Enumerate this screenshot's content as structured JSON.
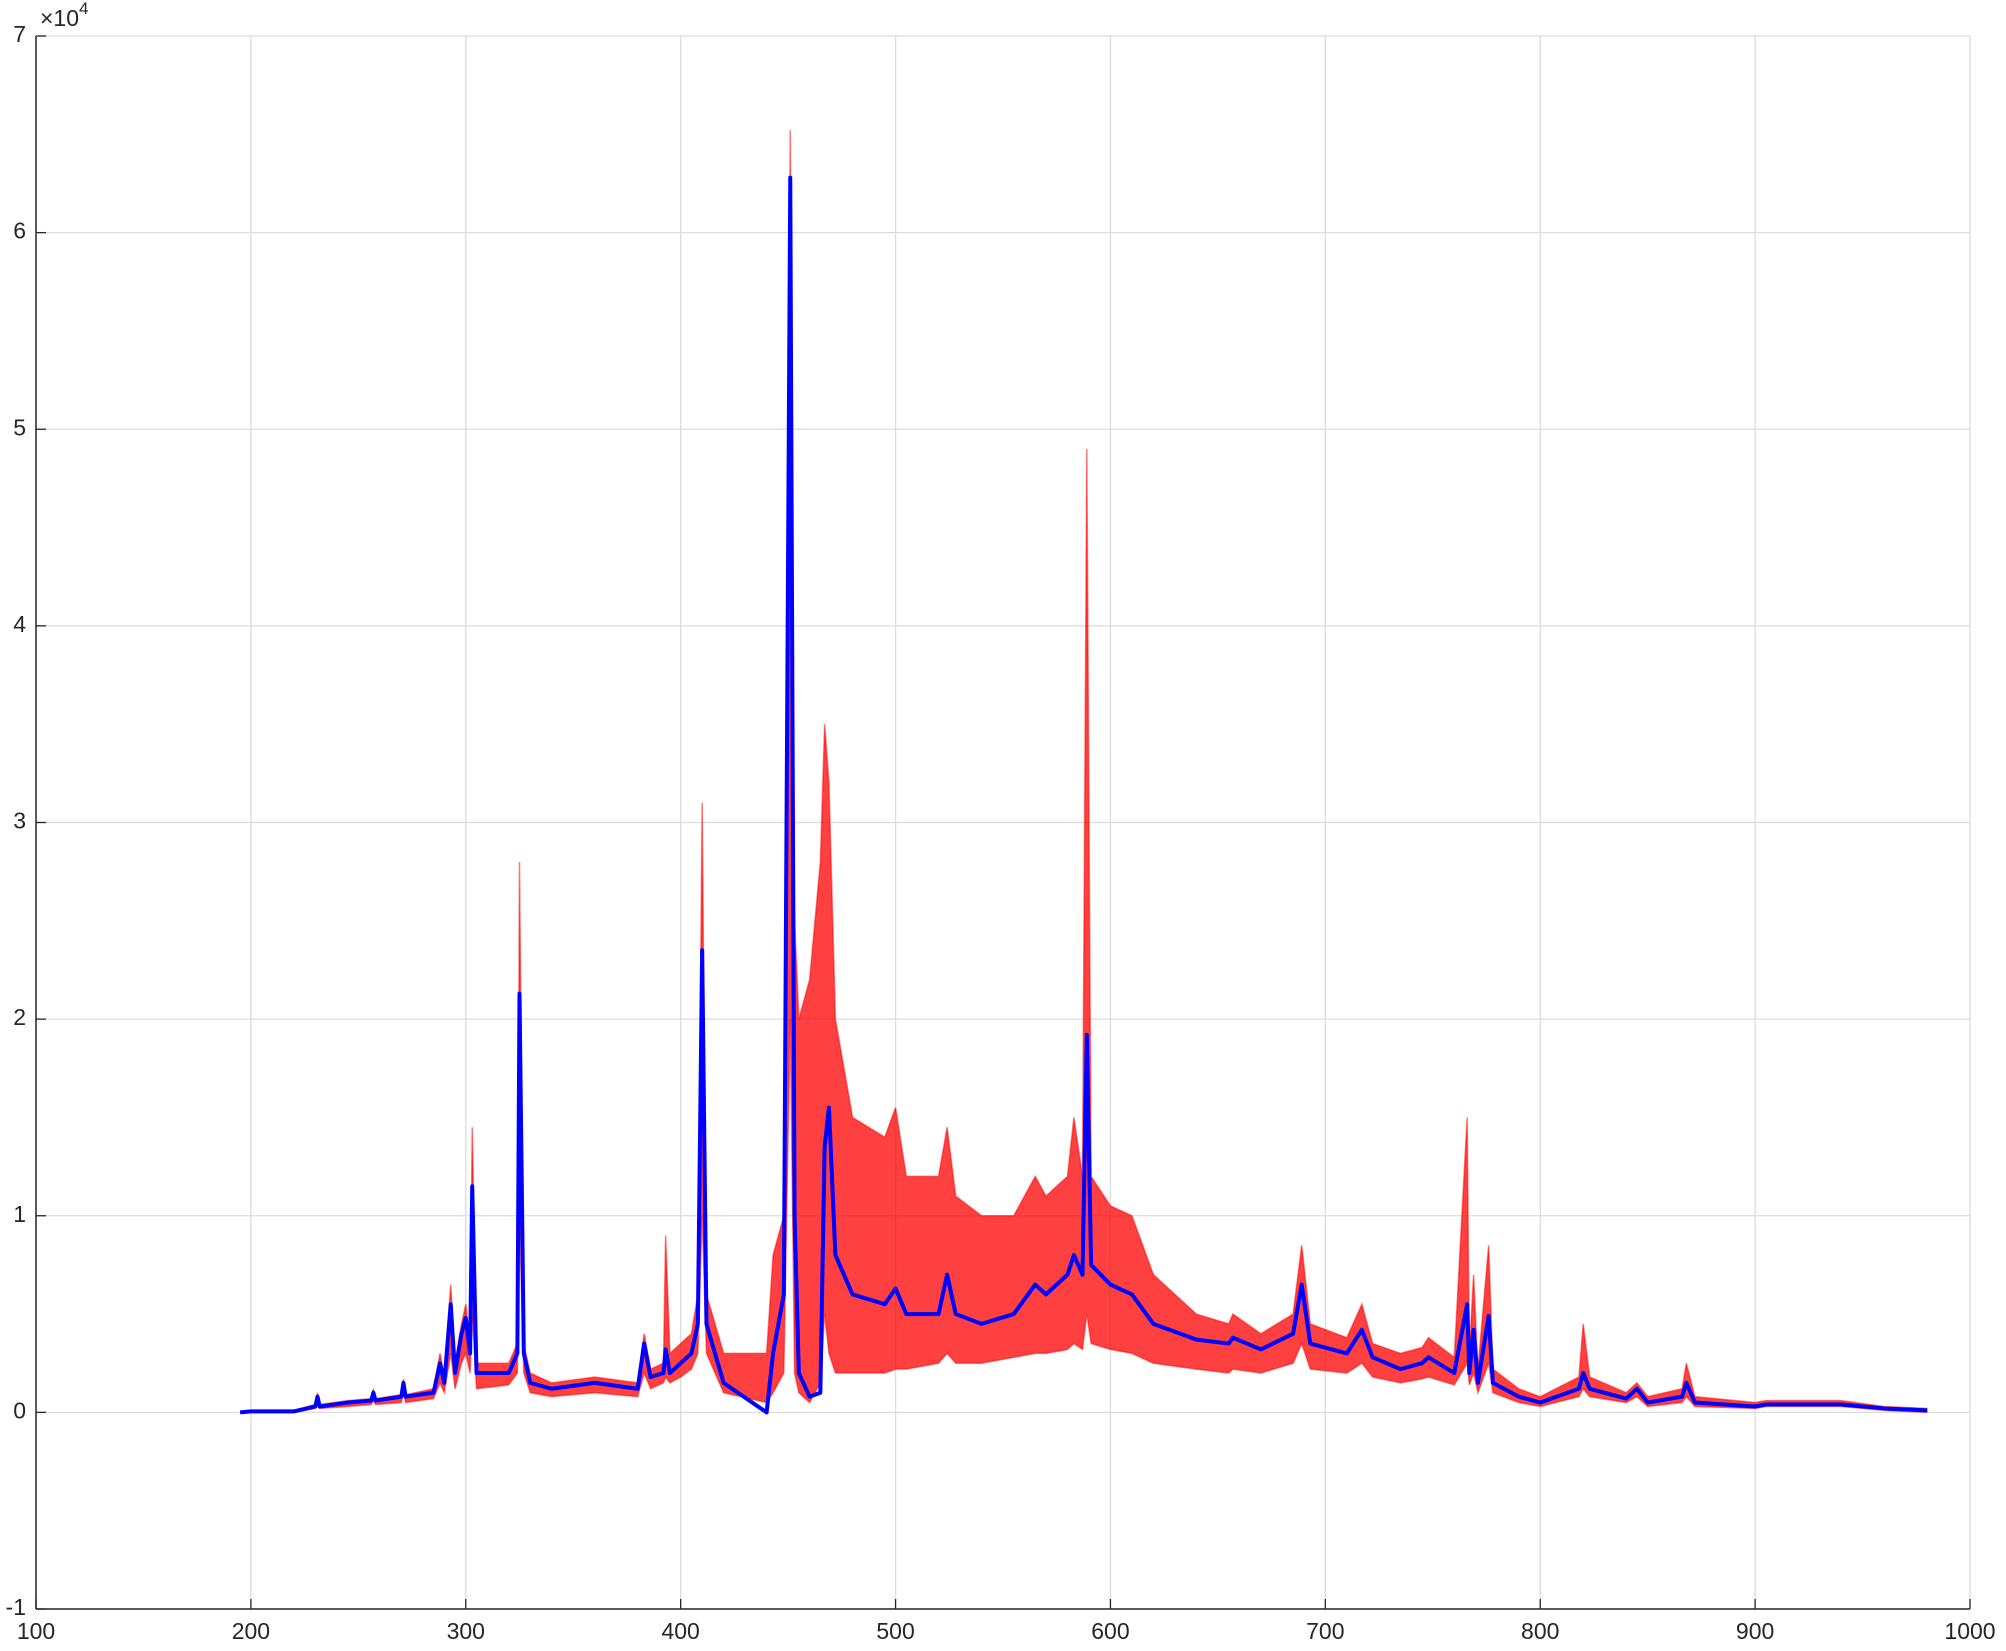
{
  "chart_data": {
    "type": "line",
    "y_multiplier": {
      "base": "×10",
      "exponent": "4"
    },
    "x": [
      195,
      200,
      220,
      230,
      231,
      232,
      245,
      256,
      257,
      258,
      270,
      271,
      272,
      285,
      288,
      290,
      293,
      295,
      298,
      300,
      302,
      303,
      305,
      320,
      324,
      325,
      327,
      330,
      340,
      360,
      380,
      383,
      386,
      392,
      393,
      395,
      400,
      405,
      408,
      410,
      412,
      420,
      440,
      443,
      448,
      451,
      453,
      455,
      460,
      465,
      467,
      469,
      472,
      480,
      495,
      500,
      505,
      520,
      524,
      528,
      540,
      555,
      565,
      570,
      580,
      583,
      587,
      589,
      591,
      600,
      610,
      620,
      640,
      655,
      657,
      670,
      685,
      689,
      693,
      710,
      717,
      722,
      735,
      745,
      748,
      760,
      766,
      767,
      769,
      771,
      776,
      778,
      790,
      800,
      818,
      820,
      823,
      840,
      845,
      850,
      866,
      868,
      872,
      900,
      905,
      940,
      960,
      980
    ],
    "series": [
      {
        "type": "band",
        "color": "#ff0000",
        "values": [
          0,
          0.01,
          0.01,
          0.04,
          0.1,
          0.04,
          0.06,
          0.07,
          0.12,
          0.07,
          0.09,
          0.17,
          0.09,
          0.12,
          0.3,
          0.18,
          0.65,
          0.25,
          0.45,
          0.55,
          0.35,
          1.45,
          0.25,
          0.25,
          0.35,
          2.8,
          0.35,
          0.2,
          0.15,
          0.18,
          0.15,
          0.4,
          0.22,
          0.25,
          0.9,
          0.3,
          0.35,
          0.4,
          0.6,
          3.1,
          0.6,
          0.3,
          0.3,
          0.8,
          1.0,
          6.52,
          2.5,
          2.0,
          2.2,
          2.8,
          3.5,
          3.2,
          2.0,
          1.5,
          1.4,
          1.55,
          1.2,
          1.2,
          1.45,
          1.1,
          1.0,
          1.0,
          1.2,
          1.1,
          1.2,
          1.5,
          1.2,
          4.9,
          1.2,
          1.05,
          1.0,
          0.7,
          0.5,
          0.45,
          0.5,
          0.4,
          0.5,
          0.85,
          0.45,
          0.38,
          0.55,
          0.35,
          0.3,
          0.33,
          0.38,
          0.28,
          1.5,
          0.3,
          0.7,
          0.22,
          0.85,
          0.22,
          0.12,
          0.08,
          0.18,
          0.45,
          0.18,
          0.1,
          0.15,
          0.08,
          0.12,
          0.25,
          0.08,
          0.05,
          0.06,
          0.06,
          0.03,
          0.02
        ],
        "lower_values": [
          0,
          0,
          0,
          0.02,
          0.05,
          0.02,
          0.03,
          0.04,
          0.06,
          0.04,
          0.05,
          0.1,
          0.05,
          0.07,
          0.15,
          0.1,
          0.3,
          0.12,
          0.25,
          0.3,
          0.2,
          0.5,
          0.12,
          0.14,
          0.2,
          1.0,
          0.2,
          0.1,
          0.08,
          0.1,
          0.08,
          0.2,
          0.12,
          0.15,
          0.18,
          0.15,
          0.18,
          0.22,
          0.3,
          1.0,
          0.3,
          0.1,
          0.05,
          0.1,
          0.2,
          2.0,
          0.2,
          0.1,
          0.05,
          0.15,
          0.5,
          0.3,
          0.2,
          0.2,
          0.2,
          0.22,
          0.22,
          0.25,
          0.3,
          0.25,
          0.25,
          0.28,
          0.3,
          0.3,
          0.32,
          0.35,
          0.32,
          0.5,
          0.35,
          0.32,
          0.3,
          0.25,
          0.22,
          0.2,
          0.22,
          0.2,
          0.25,
          0.35,
          0.22,
          0.2,
          0.25,
          0.18,
          0.15,
          0.17,
          0.18,
          0.14,
          0.25,
          0.14,
          0.2,
          0.1,
          0.25,
          0.1,
          0.05,
          0.03,
          0.08,
          0.12,
          0.08,
          0.05,
          0.08,
          0.03,
          0.05,
          0.08,
          0.03,
          0.02,
          0.03,
          0.03,
          0.01,
          0
        ]
      },
      {
        "type": "line",
        "color": "#0000ff",
        "values": [
          0,
          0.005,
          0.005,
          0.03,
          0.08,
          0.03,
          0.05,
          0.06,
          0.1,
          0.06,
          0.08,
          0.15,
          0.08,
          0.1,
          0.25,
          0.15,
          0.55,
          0.2,
          0.4,
          0.48,
          0.3,
          1.15,
          0.2,
          0.2,
          0.3,
          2.13,
          0.3,
          0.15,
          0.12,
          0.15,
          0.12,
          0.35,
          0.18,
          0.2,
          0.32,
          0.2,
          0.25,
          0.3,
          0.45,
          2.35,
          0.45,
          0.15,
          0.0,
          0.3,
          0.6,
          6.28,
          1.0,
          0.2,
          0.08,
          0.1,
          1.35,
          1.55,
          0.8,
          0.6,
          0.55,
          0.63,
          0.5,
          0.5,
          0.7,
          0.5,
          0.45,
          0.5,
          0.65,
          0.6,
          0.7,
          0.8,
          0.7,
          1.92,
          0.75,
          0.65,
          0.6,
          0.45,
          0.37,
          0.35,
          0.38,
          0.32,
          0.4,
          0.65,
          0.35,
          0.3,
          0.42,
          0.28,
          0.22,
          0.25,
          0.28,
          0.2,
          0.55,
          0.2,
          0.42,
          0.15,
          0.49,
          0.15,
          0.08,
          0.05,
          0.12,
          0.2,
          0.12,
          0.07,
          0.12,
          0.05,
          0.08,
          0.15,
          0.05,
          0.03,
          0.04,
          0.04,
          0.02,
          0.01
        ]
      }
    ],
    "xlim": [
      100,
      1000
    ],
    "ylim": [
      -1,
      7
    ],
    "xticks": [
      100,
      200,
      300,
      400,
      500,
      600,
      700,
      800,
      900,
      1000
    ],
    "yticks": [
      -1,
      0,
      1,
      2,
      3,
      4,
      5,
      6,
      7
    ],
    "grid": true
  }
}
